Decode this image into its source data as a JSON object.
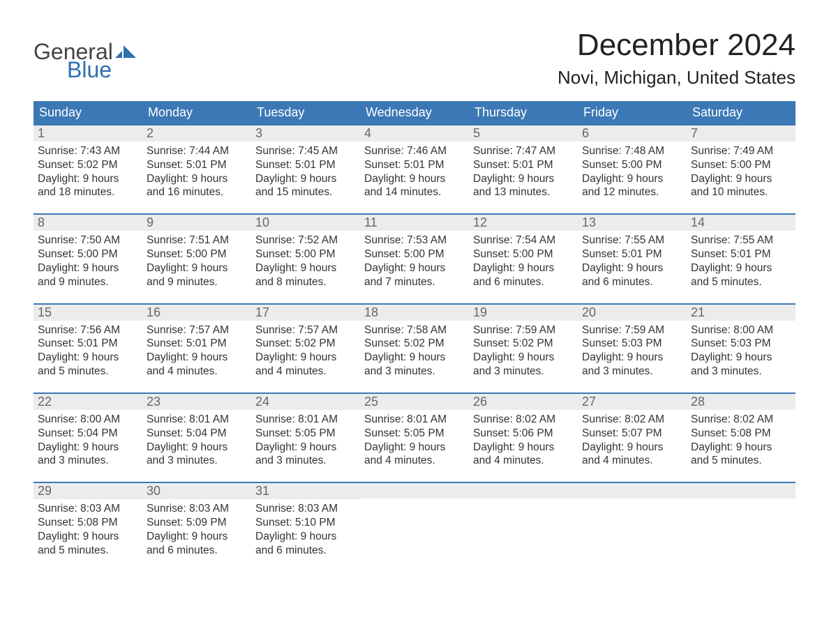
{
  "logo": {
    "text_general": "General",
    "text_blue": "Blue",
    "flag_color": "#2f6fae"
  },
  "title": "December 2024",
  "location": "Novi, Michigan, United States",
  "colors": {
    "header_bg": "#3b78b5",
    "header_text": "#ffffff",
    "daynum_bg": "#ececec",
    "daynum_text": "#666666",
    "body_text": "#333333",
    "week_border": "#3b78b5",
    "page_bg": "#ffffff"
  },
  "typography": {
    "title_fontsize": 44,
    "location_fontsize": 26,
    "dow_fontsize": 18,
    "daynum_fontsize": 18,
    "cell_fontsize": 15.5
  },
  "days_of_week": [
    "Sunday",
    "Monday",
    "Tuesday",
    "Wednesday",
    "Thursday",
    "Friday",
    "Saturday"
  ],
  "weeks": [
    [
      {
        "num": "1",
        "sunrise": "Sunrise: 7:43 AM",
        "sunset": "Sunset: 5:02 PM",
        "daylight": "Daylight: 9 hours and 18 minutes."
      },
      {
        "num": "2",
        "sunrise": "Sunrise: 7:44 AM",
        "sunset": "Sunset: 5:01 PM",
        "daylight": "Daylight: 9 hours and 16 minutes."
      },
      {
        "num": "3",
        "sunrise": "Sunrise: 7:45 AM",
        "sunset": "Sunset: 5:01 PM",
        "daylight": "Daylight: 9 hours and 15 minutes."
      },
      {
        "num": "4",
        "sunrise": "Sunrise: 7:46 AM",
        "sunset": "Sunset: 5:01 PM",
        "daylight": "Daylight: 9 hours and 14 minutes."
      },
      {
        "num": "5",
        "sunrise": "Sunrise: 7:47 AM",
        "sunset": "Sunset: 5:01 PM",
        "daylight": "Daylight: 9 hours and 13 minutes."
      },
      {
        "num": "6",
        "sunrise": "Sunrise: 7:48 AM",
        "sunset": "Sunset: 5:00 PM",
        "daylight": "Daylight: 9 hours and 12 minutes."
      },
      {
        "num": "7",
        "sunrise": "Sunrise: 7:49 AM",
        "sunset": "Sunset: 5:00 PM",
        "daylight": "Daylight: 9 hours and 10 minutes."
      }
    ],
    [
      {
        "num": "8",
        "sunrise": "Sunrise: 7:50 AM",
        "sunset": "Sunset: 5:00 PM",
        "daylight": "Daylight: 9 hours and 9 minutes."
      },
      {
        "num": "9",
        "sunrise": "Sunrise: 7:51 AM",
        "sunset": "Sunset: 5:00 PM",
        "daylight": "Daylight: 9 hours and 9 minutes."
      },
      {
        "num": "10",
        "sunrise": "Sunrise: 7:52 AM",
        "sunset": "Sunset: 5:00 PM",
        "daylight": "Daylight: 9 hours and 8 minutes."
      },
      {
        "num": "11",
        "sunrise": "Sunrise: 7:53 AM",
        "sunset": "Sunset: 5:00 PM",
        "daylight": "Daylight: 9 hours and 7 minutes."
      },
      {
        "num": "12",
        "sunrise": "Sunrise: 7:54 AM",
        "sunset": "Sunset: 5:00 PM",
        "daylight": "Daylight: 9 hours and 6 minutes."
      },
      {
        "num": "13",
        "sunrise": "Sunrise: 7:55 AM",
        "sunset": "Sunset: 5:01 PM",
        "daylight": "Daylight: 9 hours and 6 minutes."
      },
      {
        "num": "14",
        "sunrise": "Sunrise: 7:55 AM",
        "sunset": "Sunset: 5:01 PM",
        "daylight": "Daylight: 9 hours and 5 minutes."
      }
    ],
    [
      {
        "num": "15",
        "sunrise": "Sunrise: 7:56 AM",
        "sunset": "Sunset: 5:01 PM",
        "daylight": "Daylight: 9 hours and 5 minutes."
      },
      {
        "num": "16",
        "sunrise": "Sunrise: 7:57 AM",
        "sunset": "Sunset: 5:01 PM",
        "daylight": "Daylight: 9 hours and 4 minutes."
      },
      {
        "num": "17",
        "sunrise": "Sunrise: 7:57 AM",
        "sunset": "Sunset: 5:02 PM",
        "daylight": "Daylight: 9 hours and 4 minutes."
      },
      {
        "num": "18",
        "sunrise": "Sunrise: 7:58 AM",
        "sunset": "Sunset: 5:02 PM",
        "daylight": "Daylight: 9 hours and 3 minutes."
      },
      {
        "num": "19",
        "sunrise": "Sunrise: 7:59 AM",
        "sunset": "Sunset: 5:02 PM",
        "daylight": "Daylight: 9 hours and 3 minutes."
      },
      {
        "num": "20",
        "sunrise": "Sunrise: 7:59 AM",
        "sunset": "Sunset: 5:03 PM",
        "daylight": "Daylight: 9 hours and 3 minutes."
      },
      {
        "num": "21",
        "sunrise": "Sunrise: 8:00 AM",
        "sunset": "Sunset: 5:03 PM",
        "daylight": "Daylight: 9 hours and 3 minutes."
      }
    ],
    [
      {
        "num": "22",
        "sunrise": "Sunrise: 8:00 AM",
        "sunset": "Sunset: 5:04 PM",
        "daylight": "Daylight: 9 hours and 3 minutes."
      },
      {
        "num": "23",
        "sunrise": "Sunrise: 8:01 AM",
        "sunset": "Sunset: 5:04 PM",
        "daylight": "Daylight: 9 hours and 3 minutes."
      },
      {
        "num": "24",
        "sunrise": "Sunrise: 8:01 AM",
        "sunset": "Sunset: 5:05 PM",
        "daylight": "Daylight: 9 hours and 3 minutes."
      },
      {
        "num": "25",
        "sunrise": "Sunrise: 8:01 AM",
        "sunset": "Sunset: 5:05 PM",
        "daylight": "Daylight: 9 hours and 4 minutes."
      },
      {
        "num": "26",
        "sunrise": "Sunrise: 8:02 AM",
        "sunset": "Sunset: 5:06 PM",
        "daylight": "Daylight: 9 hours and 4 minutes."
      },
      {
        "num": "27",
        "sunrise": "Sunrise: 8:02 AM",
        "sunset": "Sunset: 5:07 PM",
        "daylight": "Daylight: 9 hours and 4 minutes."
      },
      {
        "num": "28",
        "sunrise": "Sunrise: 8:02 AM",
        "sunset": "Sunset: 5:08 PM",
        "daylight": "Daylight: 9 hours and 5 minutes."
      }
    ],
    [
      {
        "num": "29",
        "sunrise": "Sunrise: 8:03 AM",
        "sunset": "Sunset: 5:08 PM",
        "daylight": "Daylight: 9 hours and 5 minutes."
      },
      {
        "num": "30",
        "sunrise": "Sunrise: 8:03 AM",
        "sunset": "Sunset: 5:09 PM",
        "daylight": "Daylight: 9 hours and 6 minutes."
      },
      {
        "num": "31",
        "sunrise": "Sunrise: 8:03 AM",
        "sunset": "Sunset: 5:10 PM",
        "daylight": "Daylight: 9 hours and 6 minutes."
      },
      null,
      null,
      null,
      null
    ]
  ]
}
